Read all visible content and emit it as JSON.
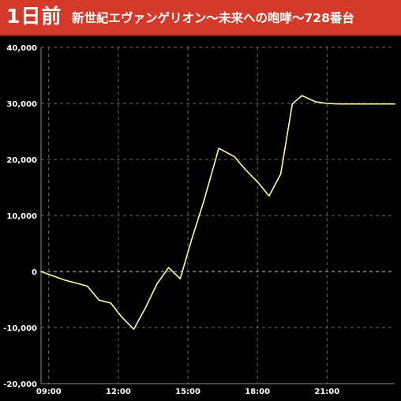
{
  "header": {
    "day_label": "1日前",
    "machine_title": "新世紀エヴァンゲリオン〜未来への咆哮〜728番台"
  },
  "colors": {
    "header_bg": "#d43a2a",
    "background": "#000000",
    "line": "#ffff99",
    "grid": "#6a6a6a",
    "zero_line": "#c8c8c8",
    "text": "#ffffff"
  },
  "chart_data": {
    "type": "line",
    "title": "",
    "xlabel": "",
    "ylabel": "",
    "grid": true,
    "legend": "none",
    "ylim": [
      -20000,
      40000
    ],
    "yticks": [
      -20000,
      -10000,
      0,
      10000,
      20000,
      30000,
      40000
    ],
    "ytick_labels": [
      "-20,000",
      "-10,000",
      "0",
      "10,000",
      "20,000",
      "30,000",
      "40,000"
    ],
    "xlim": [
      "08:40",
      "23:55"
    ],
    "xticks": [
      "09:00",
      "12:00",
      "15:00",
      "18:00",
      "21:00"
    ],
    "series": [
      {
        "x": [
          "08:40",
          "09:40",
          "10:40",
          "11:10",
          "11:40",
          "12:10",
          "12:40",
          "13:10",
          "13:40",
          "14:10",
          "14:40",
          "15:10",
          "15:40",
          "16:20",
          "17:00",
          "17:30",
          "18:00",
          "18:30",
          "19:00",
          "19:30",
          "19:55",
          "20:30",
          "21:00",
          "21:30",
          "22:00",
          "23:00",
          "23:55"
        ],
        "y": [
          0,
          -1500,
          -2600,
          -5100,
          -5600,
          -8200,
          -10300,
          -6500,
          -2200,
          700,
          -1300,
          5800,
          12300,
          22000,
          20500,
          18100,
          16000,
          13500,
          17400,
          29900,
          31400,
          30300,
          30000,
          29900,
          29900,
          29900,
          29900
        ]
      }
    ]
  }
}
